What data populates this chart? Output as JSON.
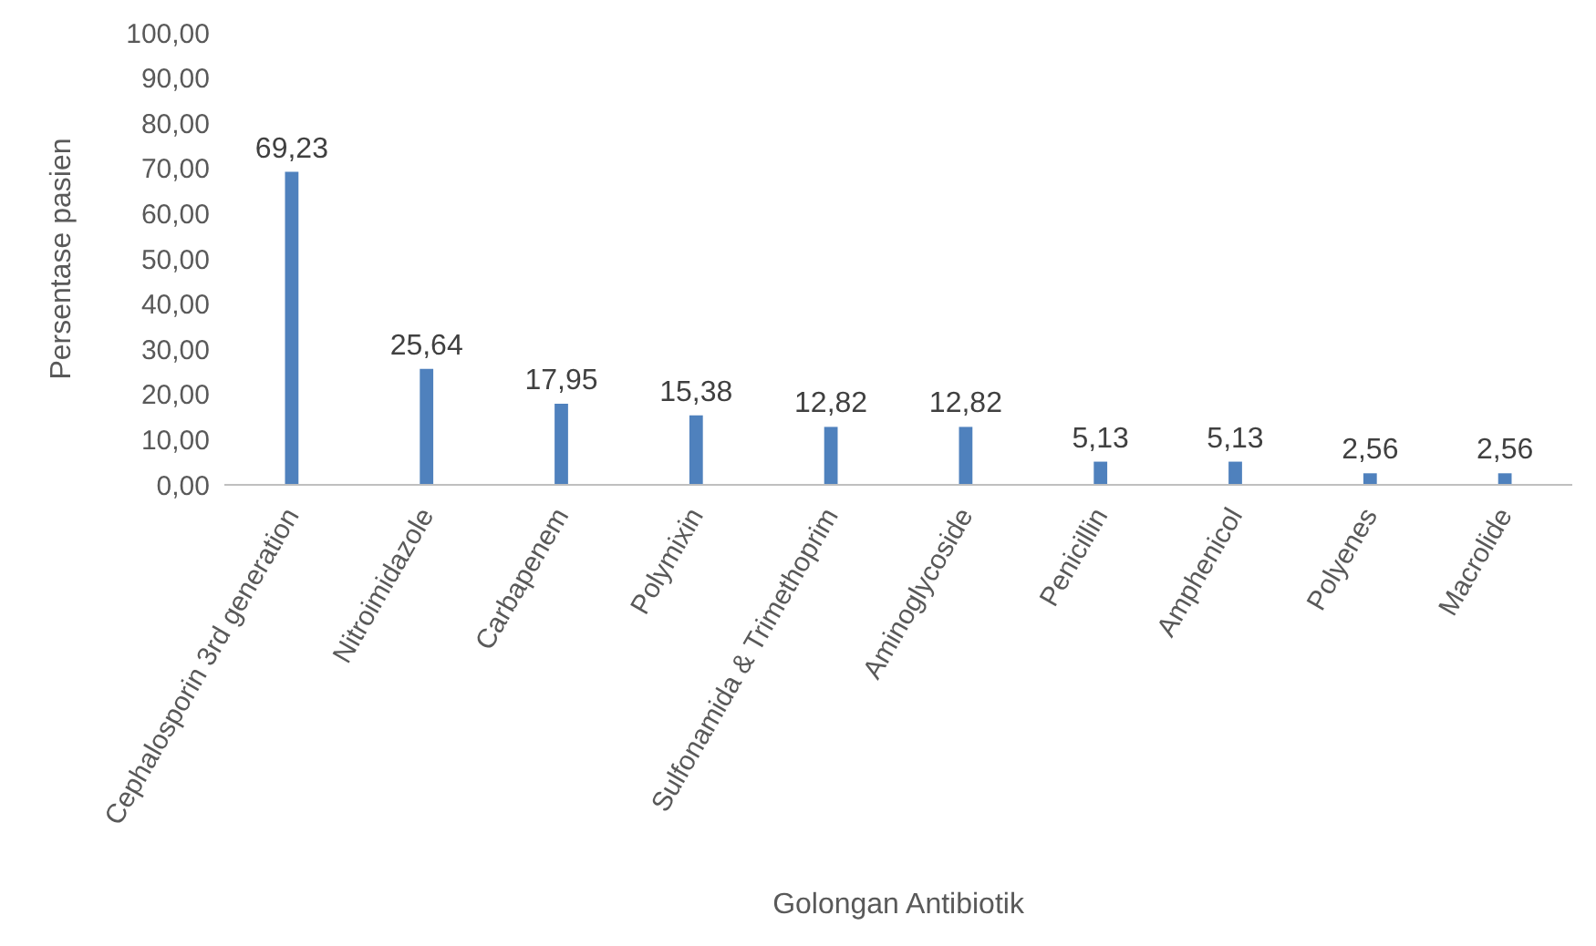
{
  "chart_data": {
    "type": "bar",
    "xlabel": "Golongan Antibiotik",
    "ylabel": "Persentase pasien",
    "categories": [
      "Cephalosporin 3rd generation",
      "Nitroimidazole",
      "Carbapenem",
      "Polymixin",
      "Sulfonamida & Trimethoprim",
      "Aminoglycoside",
      "Penicillin",
      "Amphenicol",
      "Polyenes",
      "Macrolide"
    ],
    "values": [
      69.23,
      25.64,
      17.95,
      15.38,
      12.82,
      12.82,
      5.13,
      5.13,
      2.56,
      2.56
    ],
    "value_labels": [
      "69,23",
      "25,64",
      "17,95",
      "15,38",
      "12,82",
      "12,82",
      "5,13",
      "5,13",
      "2,56",
      "2,56"
    ],
    "color": "#4f81bd",
    "ylim": [
      0,
      100
    ],
    "yticks": [
      {
        "value": 0,
        "label": "0,00"
      },
      {
        "value": 10,
        "label": "10,00"
      },
      {
        "value": 20,
        "label": "20,00"
      },
      {
        "value": 30,
        "label": "30,00"
      },
      {
        "value": 40,
        "label": "40,00"
      },
      {
        "value": 50,
        "label": "50,00"
      },
      {
        "value": 60,
        "label": "60,00"
      },
      {
        "value": 70,
        "label": "70,00"
      },
      {
        "value": 80,
        "label": "80,00"
      },
      {
        "value": 90,
        "label": "90,00"
      },
      {
        "value": 100,
        "label": "100,00"
      }
    ],
    "grid": false,
    "legend": false
  }
}
